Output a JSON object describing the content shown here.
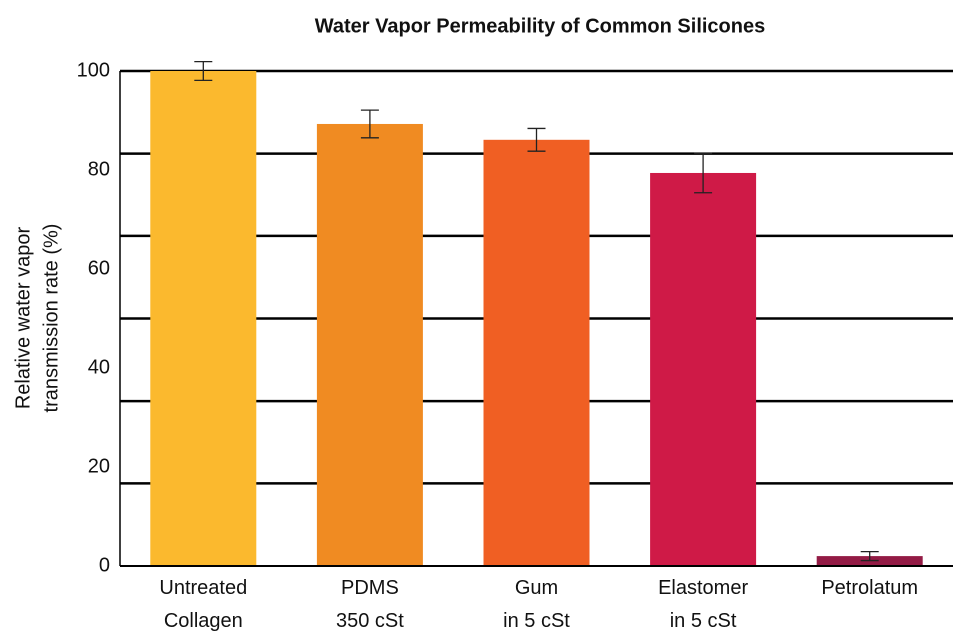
{
  "chart_data": {
    "type": "bar",
    "title": "Water Vapor Permeability of Common Silicones",
    "ylabel": [
      "Relative water vapor",
      "transmission rate (%)"
    ],
    "categories": [
      "Untreated\nCollagen",
      "PDMS\n350 cSt",
      "Gum\nin 5 cSt",
      "Elastomer\nin 5 cSt",
      "Petrolatum"
    ],
    "values": [
      100,
      89.3,
      86.1,
      79.4,
      2.0
    ],
    "errors": [
      1.9,
      2.8,
      2.3,
      4.0,
      0.9
    ],
    "colors": [
      "#fbb92e",
      "#f08b22",
      "#f05f23",
      "#cf1a47",
      "#931b45"
    ],
    "ylim": [
      0,
      100
    ],
    "yticks": [
      0,
      20,
      40,
      60,
      80,
      100
    ],
    "ygrid": [
      16.7,
      33.3,
      50,
      66.7,
      83.3,
      100
    ]
  }
}
